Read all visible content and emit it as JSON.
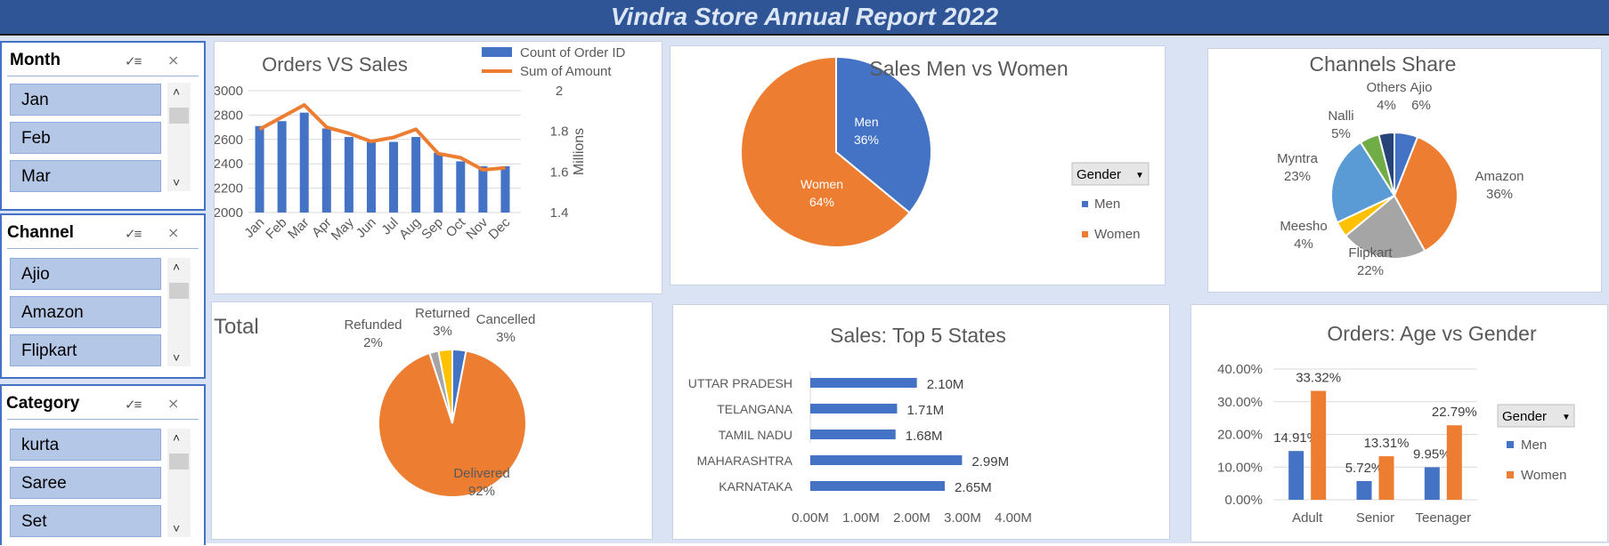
{
  "header": {
    "title": "Vindra Store Annual Report 2022"
  },
  "slicers": [
    {
      "title": "Month",
      "items": [
        "Jan",
        "Feb",
        "Mar"
      ]
    },
    {
      "title": "Channel",
      "items": [
        "Ajio",
        "Amazon",
        "Flipkart"
      ]
    },
    {
      "title": "Category",
      "items": [
        "kurta",
        "Saree",
        "Set"
      ]
    }
  ],
  "chart_data": [
    {
      "id": "orders_vs_sales",
      "type": "bar+line",
      "title": "Orders VS Sales",
      "categories": [
        "Jan",
        "Feb",
        "Mar",
        "Apr",
        "May",
        "Jun",
        "Jul",
        "Aug",
        "Sep",
        "Oct",
        "Nov",
        "Dec"
      ],
      "series": [
        {
          "name": "Count of Order ID",
          "type": "bar",
          "axis": "left",
          "values": [
            2710,
            2750,
            2820,
            2690,
            2620,
            2580,
            2580,
            2620,
            2490,
            2420,
            2380,
            2380
          ],
          "color": "#4472c4"
        },
        {
          "name": "Sum of Amount",
          "type": "line",
          "axis": "right",
          "values": [
            1.81,
            1.87,
            1.93,
            1.82,
            1.79,
            1.75,
            1.77,
            1.81,
            1.69,
            1.67,
            1.61,
            1.62
          ],
          "color": "#ed7d31"
        }
      ],
      "ylim_left": [
        2000,
        3000
      ],
      "yticks_left": [
        "3000",
        "2800",
        "2600",
        "2400",
        "2200",
        "2000"
      ],
      "ylim_right": [
        1.4,
        2
      ],
      "yticks_right": [
        "2",
        "1.8",
        "1.6",
        "1.4"
      ],
      "ylabel_right": "Millions",
      "grid": true,
      "legend": "top-right"
    },
    {
      "id": "sales_men_women",
      "type": "pie",
      "title": "Sales Men vs Women",
      "legend_title": "Gender",
      "labels": [
        "Men",
        "Women"
      ],
      "values": [
        36,
        64
      ],
      "value_labels": [
        "36%",
        "64%"
      ],
      "colors": [
        "#4472c4",
        "#ed7d31"
      ],
      "legend": "right"
    },
    {
      "id": "channels_share",
      "type": "pie",
      "title": "Channels Share",
      "labels": [
        "Ajio",
        "Amazon",
        "Flipkart",
        "Meesho",
        "Myntra",
        "Nalli",
        "Others"
      ],
      "values": [
        6,
        36,
        22,
        4,
        23,
        5,
        4
      ],
      "value_labels": [
        "6%",
        "36%",
        "22%",
        "4%",
        "23%",
        "5%",
        "4%"
      ],
      "colors": [
        "#4472c4",
        "#ed7d31",
        "#a5a5a5",
        "#ffc000",
        "#5b9bd5",
        "#70ad47",
        "#264478"
      ]
    },
    {
      "id": "order_status",
      "type": "pie",
      "title": "Total",
      "labels": [
        "Cancelled",
        "Delivered",
        "Refunded",
        "Returned"
      ],
      "values": [
        3,
        92,
        2,
        3
      ],
      "value_labels": [
        "3%",
        "92%",
        "2%",
        "3%"
      ],
      "colors": [
        "#4472c4",
        "#ed7d31",
        "#a5a5a5",
        "#ffc000"
      ]
    },
    {
      "id": "top5_states",
      "type": "bar",
      "orientation": "horizontal",
      "title": "Sales: Top 5 States",
      "categories": [
        "UTTAR PRADESH",
        "TELANGANA",
        "TAMIL NADU",
        "MAHARASHTRA",
        "KARNATAKA"
      ],
      "values": [
        2.1,
        1.71,
        1.68,
        2.99,
        2.65
      ],
      "value_labels": [
        "2.10M",
        "1.71M",
        "1.68M",
        "2.99M",
        "2.65M"
      ],
      "xlim": [
        0,
        4
      ],
      "xticks": [
        "0.00M",
        "1.00M",
        "2.00M",
        "3.00M",
        "4.00M"
      ],
      "color": "#4472c4"
    },
    {
      "id": "age_vs_gender",
      "type": "bar",
      "title": "Orders: Age vs Gender",
      "legend_title": "Gender",
      "categories": [
        "Adult",
        "Senior",
        "Teenager"
      ],
      "series": [
        {
          "name": "Men",
          "values": [
            14.91,
            5.72,
            9.95
          ],
          "labels": [
            "14.91%",
            "5.72%",
            "9.95%"
          ],
          "color": "#4472c4"
        },
        {
          "name": "Women",
          "values": [
            33.32,
            13.31,
            22.79
          ],
          "labels": [
            "33.32%",
            "13.31%",
            "22.79%"
          ],
          "color": "#ed7d31"
        }
      ],
      "ylim": [
        0,
        40
      ],
      "yticks": [
        "40.00%",
        "30.00%",
        "20.00%",
        "10.00%",
        "0.00%"
      ],
      "grid": true,
      "legend": "right"
    }
  ]
}
